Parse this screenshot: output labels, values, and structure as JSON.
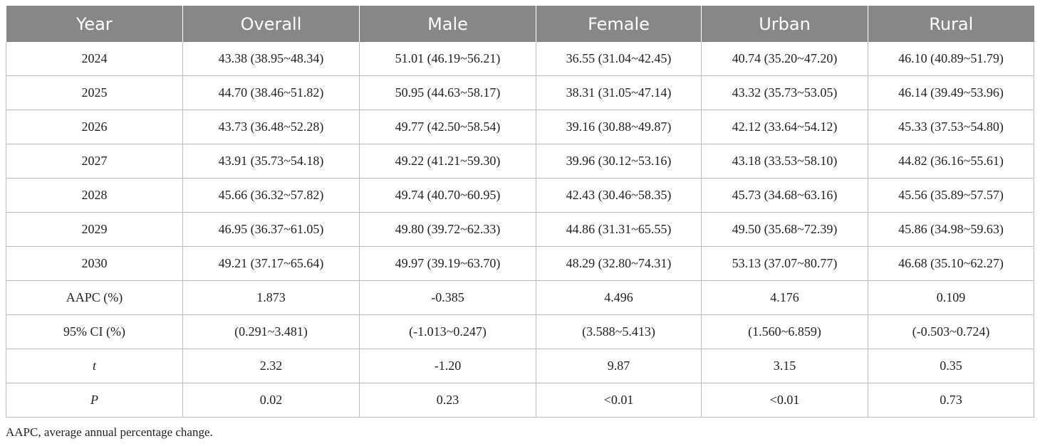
{
  "table": {
    "headers": [
      "Year",
      "Overall",
      "Male",
      "Female",
      "Urban",
      "Rural"
    ],
    "rows": [
      [
        "2024",
        "43.38 (38.95~48.34)",
        "51.01 (46.19~56.21)",
        "36.55 (31.04~42.45)",
        "40.74 (35.20~47.20)",
        "46.10 (40.89~51.79)"
      ],
      [
        "2025",
        "44.70 (38.46~51.82)",
        "50.95 (44.63~58.17)",
        "38.31 (31.05~47.14)",
        "43.32 (35.73~53.05)",
        "46.14 (39.49~53.96)"
      ],
      [
        "2026",
        "43.73 (36.48~52.28)",
        "49.77 (42.50~58.54)",
        "39.16 (30.88~49.87)",
        "42.12 (33.64~54.12)",
        "45.33 (37.53~54.80)"
      ],
      [
        "2027",
        "43.91 (35.73~54.18)",
        "49.22 (41.21~59.30)",
        "39.96 (30.12~53.16)",
        "43.18 (33.53~58.10)",
        "44.82 (36.16~55.61)"
      ],
      [
        "2028",
        "45.66 (36.32~57.82)",
        "49.74 (40.70~60.95)",
        "42.43 (30.46~58.35)",
        "45.73 (34.68~63.16)",
        "45.56 (35.89~57.57)"
      ],
      [
        "2029",
        "46.95 (36.37~61.05)",
        "49.80 (39.72~62.33)",
        "44.86 (31.31~65.55)",
        "49.50 (35.68~72.39)",
        "45.86 (34.98~59.63)"
      ],
      [
        "2030",
        "49.21 (37.17~65.64)",
        "49.97 (39.19~63.70)",
        "48.29 (32.80~74.31)",
        "53.13 (37.07~80.77)",
        "46.68 (35.10~62.27)"
      ],
      [
        "AAPC (%)",
        "1.873",
        "-0.385",
        "4.496",
        "4.176",
        "0.109"
      ],
      [
        "95% CI (%)",
        "(0.291~3.481)",
        "(-1.013~0.247)",
        "(3.588~5.413)",
        "(1.560~6.859)",
        "(-0.503~0.724)"
      ],
      [
        "t",
        "2.32",
        "-1.20",
        "9.87",
        "3.15",
        "0.35"
      ],
      [
        "P",
        "0.02",
        "0.23",
        "<0.01",
        "<0.01",
        "0.73"
      ]
    ]
  },
  "footnote": "AAPC, average annual percentage change.",
  "colors": {
    "header_bg": "#878787",
    "header_text": "#ffffff",
    "grid": "#bdbdbd"
  }
}
